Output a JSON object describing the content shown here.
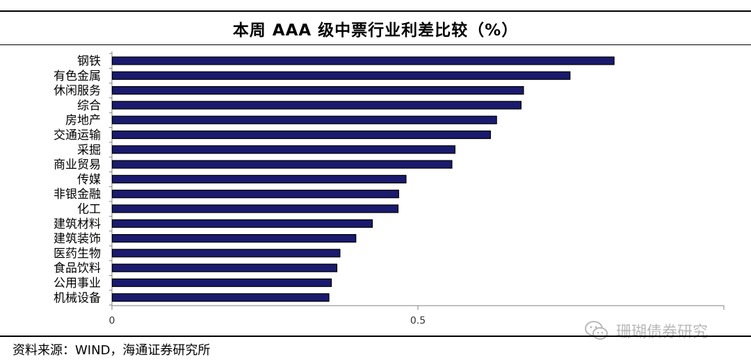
{
  "title": "本周 AAA 级中票行业利差比较（%）",
  "source": "资料来源：WIND，海通证券研究所",
  "watermark": "珊瑚债券研究",
  "watermark_icon": "wechat-icon",
  "colors": {
    "bar_fill": "#1a1a6e",
    "bar_edge": "#000000",
    "axis": "#808080"
  },
  "chart_data": {
    "type": "bar",
    "orientation": "horizontal",
    "categories": [
      "钢铁",
      "有色金属",
      "休闲服务",
      "综合",
      "房地产",
      "交通运输",
      "采掘",
      "商业贸易",
      "传媒",
      "非银金融",
      "化工",
      "建筑材料",
      "建筑装饰",
      "医药生物",
      "食品饮料",
      "公用事业",
      "机械设备"
    ],
    "values": [
      0.82,
      0.748,
      0.672,
      0.668,
      0.628,
      0.618,
      0.56,
      0.555,
      0.48,
      0.468,
      0.467,
      0.425,
      0.398,
      0.372,
      0.367,
      0.358,
      0.354
    ],
    "x_ticks": [
      "0",
      "0.5"
    ],
    "xlim": [
      0,
      1.0
    ],
    "grid": false,
    "legend": false
  }
}
